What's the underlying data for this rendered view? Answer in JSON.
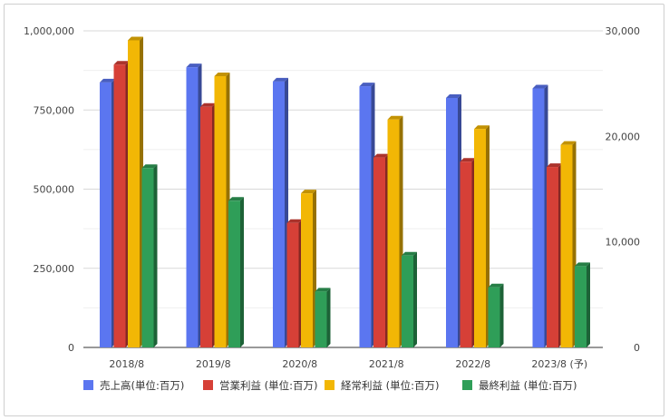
{
  "chart_data": {
    "type": "bar",
    "categories": [
      "2018/8",
      "2019/8",
      "2020/8",
      "2021/8",
      "2022/8",
      "2023/8 (予)"
    ],
    "series": [
      {
        "name": "売上高(単位:百万)",
        "axis": "left",
        "color": "#5b76f0",
        "values": [
          837000,
          885000,
          840000,
          825000,
          788000,
          818000
        ]
      },
      {
        "name": "営業利益 (単位:百万)",
        "axis": "right",
        "color": "#d64037",
        "values": [
          26800,
          22800,
          11800,
          18000,
          17600,
          17100
        ]
      },
      {
        "name": "経常利益 (単位:百万)",
        "axis": "right",
        "color": "#f2b705",
        "values": [
          29100,
          25700,
          14600,
          21600,
          20700,
          19200
        ]
      },
      {
        "name": "最終利益 (単位:百万)",
        "axis": "right",
        "color": "#2f9e58",
        "values": [
          17000,
          13900,
          5300,
          8700,
          5700,
          7700
        ]
      }
    ],
    "yleft": {
      "lim": [
        0,
        1000000
      ],
      "ticks": [
        "0",
        "250,000",
        "500,000",
        "750,000",
        "1,000,000"
      ]
    },
    "yright": {
      "lim": [
        0,
        30000
      ],
      "ticks": [
        "0",
        "10,000",
        "20,000",
        "30,000"
      ]
    },
    "grid": true,
    "legend_position": "bottom"
  }
}
